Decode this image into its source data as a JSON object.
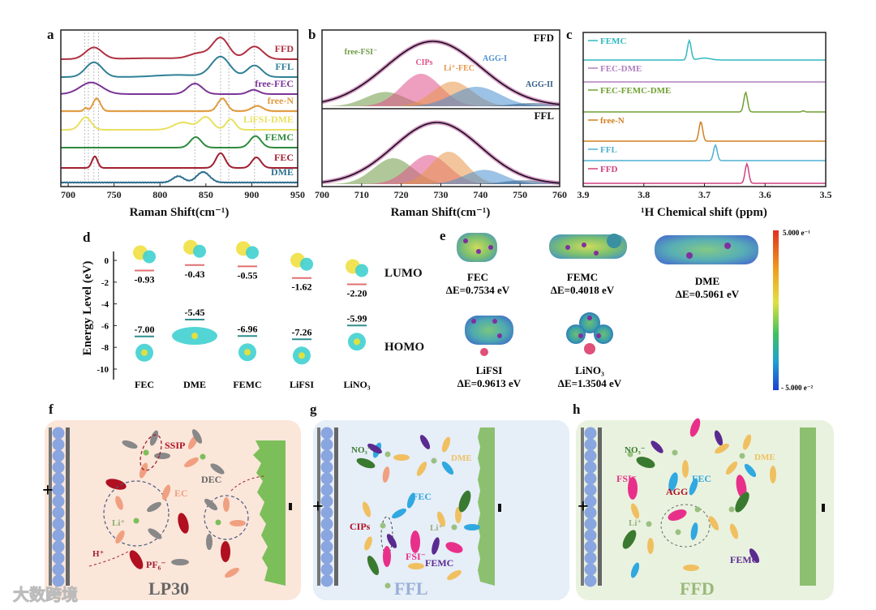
{
  "panel_labels": {
    "a": "a",
    "b": "b",
    "c": "c",
    "d": "d",
    "e": "e",
    "f": "f",
    "g": "g",
    "h": "h"
  },
  "watermark": "大数跨境",
  "chart_data": [
    {
      "id": "a",
      "type": "line",
      "xlabel": "Raman Shift(cm⁻¹)",
      "xlim": [
        692,
        950
      ],
      "xticks": [
        700,
        750,
        800,
        850,
        900,
        950
      ],
      "reference_lines": [
        718,
        722,
        728,
        733,
        838,
        866,
        875,
        903
      ],
      "series": [
        {
          "name": "FFD",
          "color": "#b03040",
          "peaks": [
            [
              728,
              0.55,
              9
            ],
            [
              842,
              0.25,
              10
            ],
            [
              866,
              1.0,
              9
            ],
            [
              903,
              0.6,
              9
            ],
            [
              800,
              0.05,
              40
            ]
          ]
        },
        {
          "name": "FFL",
          "color": "#2f8095",
          "peaks": [
            [
              728,
              0.7,
              9
            ],
            [
              866,
              0.95,
              10
            ],
            [
              903,
              0.55,
              8
            ],
            [
              820,
              0.1,
              25
            ]
          ]
        },
        {
          "name": "free-FEC",
          "color": "#7a3595",
          "peaks": [
            [
              725,
              0.55,
              12
            ],
            [
              838,
              0.5,
              8
            ],
            [
              902,
              0.2,
              6
            ]
          ]
        },
        {
          "name": "free-N",
          "color": "#e09a40",
          "peaks": [
            [
              719,
              0.15,
              2
            ],
            [
              731,
              0.6,
              4
            ],
            [
              868,
              0.6,
              5
            ],
            [
              906,
              0.25,
              6
            ]
          ]
        },
        {
          "name": "LiFSI-DME",
          "color": "#e8e060",
          "peaks": [
            [
              719,
              0.6,
              6
            ],
            [
              825,
              0.35,
              10
            ],
            [
              850,
              0.6,
              7
            ],
            [
              877,
              0.5,
              5
            ]
          ]
        },
        {
          "name": "FEMC",
          "color": "#2e8b3e",
          "peaks": [
            [
              839,
              0.5,
              6
            ],
            [
              904,
              0.55,
              6
            ]
          ]
        },
        {
          "name": "FEC",
          "color": "#a02030",
          "peaks": [
            [
              729,
              0.55,
              3
            ],
            [
              866,
              0.7,
              5
            ],
            [
              905,
              0.5,
              5
            ]
          ]
        },
        {
          "name": "DME",
          "color": "#2f6f8f",
          "peaks": [
            [
              820,
              0.3,
              6
            ],
            [
              847,
              0.5,
              7
            ]
          ]
        }
      ]
    },
    {
      "id": "b",
      "type": "area",
      "xlabel": "Raman Shift(cm⁻¹)",
      "xlim": [
        700,
        760
      ],
      "xticks": [
        700,
        710,
        720,
        730,
        740,
        750,
        760
      ],
      "envelope_color": "#c060a0",
      "subplots": [
        {
          "name": "FFD",
          "envelope": [
            728,
            1.0,
            12
          ],
          "components": [
            {
              "name": "free-FSI⁻",
              "color": "#6f9a45",
              "peak": [
                716,
                0.22,
                5
              ]
            },
            {
              "name": "CIPs",
              "color": "#e0508a",
              "peak": [
                725,
                0.5,
                5
              ]
            },
            {
              "name": "Li⁺-FEC",
              "color": "#e8954a",
              "peak": [
                733,
                0.38,
                5
              ]
            },
            {
              "name": "AGG-I",
              "color": "#4a90d0",
              "peak": [
                739,
                0.3,
                6
              ]
            },
            {
              "name": "AGG-II",
              "color": "#2f5a85",
              "peak": [
                753,
                0.05,
                5
              ]
            }
          ]
        },
        {
          "name": "FFL",
          "envelope": [
            729,
            0.95,
            11
          ],
          "components": [
            {
              "name": "free-FSI⁻",
              "color": "#6f9a45",
              "peak": [
                718,
                0.4,
                5
              ]
            },
            {
              "name": "CIPs",
              "color": "#e0508a",
              "peak": [
                727,
                0.45,
                5
              ]
            },
            {
              "name": "Li⁺-FEC",
              "color": "#e8954a",
              "peak": [
                732,
                0.5,
                4.5
              ]
            },
            {
              "name": "AGG-I",
              "color": "#4a90d0",
              "peak": [
                741,
                0.22,
                5
              ]
            },
            {
              "name": "AGG-II",
              "color": "#2f5a85",
              "peak": [
                751,
                0.06,
                5
              ]
            }
          ]
        }
      ]
    },
    {
      "id": "c",
      "type": "line",
      "xlabel": "¹H Chemical shift (ppm)",
      "xlim": [
        3.9,
        3.5
      ],
      "xticks": [
        "3.9",
        "3.8",
        "3.7",
        "3.6",
        "3.5"
      ],
      "series": [
        {
          "name": "FEMC",
          "color": "#30b8c0",
          "peaks": [
            [
              3.725,
              1.0,
              0.003
            ],
            [
              3.7,
              0.1,
              0.01
            ]
          ]
        },
        {
          "name": "FEC-DME",
          "color": "#b080c0",
          "peaks": []
        },
        {
          "name": "FEC-FEMC-DME",
          "color": "#70a030",
          "peaks": [
            [
              3.632,
              1.0,
              0.003
            ],
            [
              3.537,
              0.06,
              0.002
            ]
          ]
        },
        {
          "name": "free-N",
          "color": "#d08020",
          "peaks": [
            [
              3.706,
              1.0,
              0.003
            ]
          ]
        },
        {
          "name": "FFL",
          "color": "#50b0d0",
          "peaks": [
            [
              3.682,
              0.8,
              0.003
            ]
          ]
        },
        {
          "name": "FFD",
          "color": "#d04080",
          "peaks": [
            [
              3.63,
              1.0,
              0.003
            ]
          ]
        }
      ]
    },
    {
      "id": "d",
      "type": "scatter",
      "ylabel": "Energy Level (eV)",
      "ylim": [
        -10,
        0.5
      ],
      "yticks": [
        "0",
        "-2",
        "-4",
        "-6",
        "-8",
        "-10"
      ],
      "level_labels": {
        "lumo": "LUMO",
        "homo": "HOMO"
      },
      "categories": [
        "FEC",
        "DME",
        "FEMC",
        "LiFSI",
        "LiNO₃"
      ],
      "lumo": [
        -0.93,
        -0.43,
        -0.55,
        -1.62,
        -2.2
      ],
      "homo": [
        -7.0,
        -5.45,
        -6.96,
        -7.26,
        -5.99
      ],
      "lumo_labels": [
        "-0.93",
        "-0.43",
        "-0.55",
        "-1.62",
        "-2.20"
      ],
      "homo_labels": [
        "-7.00",
        "-5.45",
        "-6.96",
        "-7.26",
        "-5.99"
      ],
      "lumo_color": "#e07070",
      "homo_color": "#2f8f8f"
    }
  ],
  "panel_e": {
    "molecules": [
      {
        "name": "FEC",
        "gap": "ΔE=0.7534 eV"
      },
      {
        "name": "FEMC",
        "gap": "ΔE=0.4018 eV"
      },
      {
        "name": "DME",
        "gap": "ΔE=0.5061 eV"
      },
      {
        "name": "LiFSI",
        "gap": "ΔE=0.9613 eV"
      },
      {
        "name": "LiNO₃",
        "gap": "ΔE=1.3504 eV"
      }
    ],
    "colorbar": {
      "max_label": "5.000 e⁻¹",
      "min_label": "- 5.000 e⁻²"
    }
  },
  "panel_f": {
    "title": "LP30",
    "labels": {
      "ssip": "SSIP",
      "dec": "DEC",
      "ec": "EC",
      "li": "Li⁺",
      "h": "H⁺",
      "pf6": "PF₆⁻"
    },
    "plus": "+",
    "minus": "−"
  },
  "panel_g": {
    "title": "FFL",
    "labels": {
      "no3": "NO₃⁻",
      "dme": "DME",
      "fec": "FEC",
      "cips": "CIPs",
      "li": "Li⁺",
      "fsi": "FSI⁻",
      "femc": "FEMC"
    },
    "plus": "+",
    "minus": "−"
  },
  "panel_h": {
    "title": "FFD",
    "labels": {
      "no3": "NO₃⁻",
      "dme": "DME",
      "fsi": "FSI⁻",
      "fec": "FEC",
      "agg": "AGG",
      "li": "Li⁺",
      "femc": "FEMC"
    },
    "plus": "+",
    "minus": "−"
  }
}
